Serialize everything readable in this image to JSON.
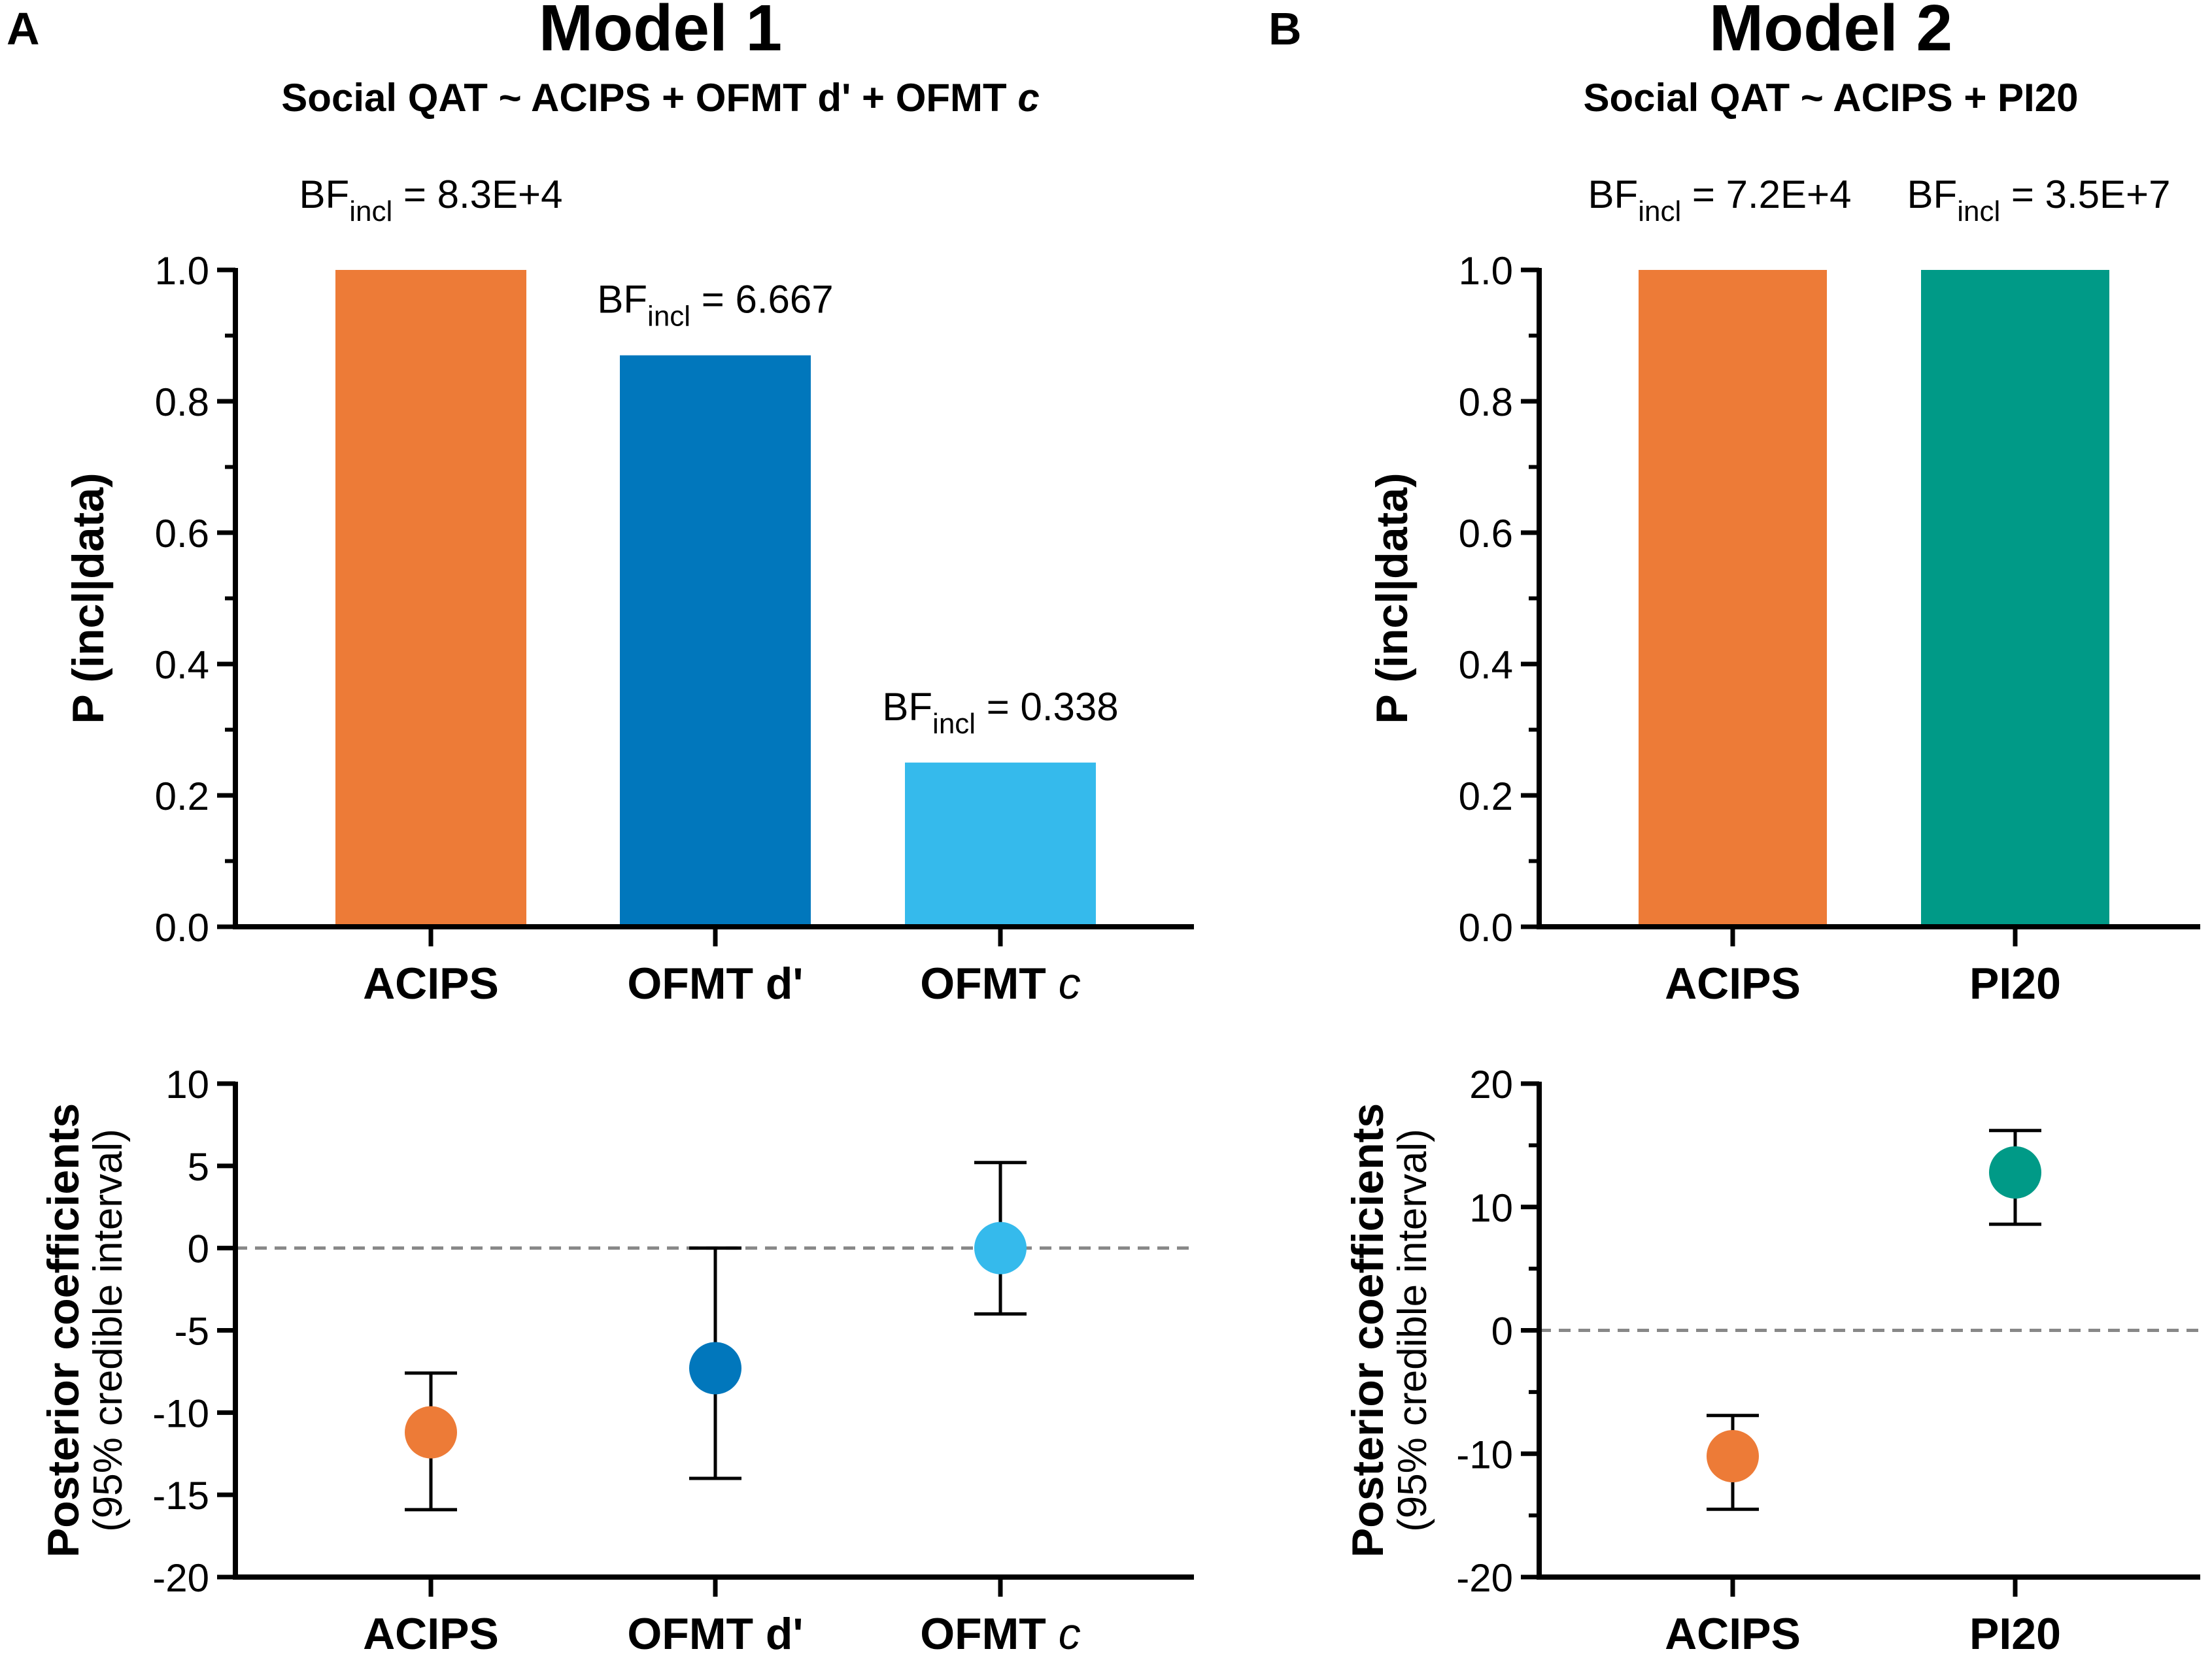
{
  "panels": [
    {
      "letter": "A",
      "title": "Model 1",
      "formula": {
        "pre": "Social QAT ~ ACIPS + OFMT d' + OFMT ",
        "italic": "c"
      },
      "xticks": [
        {
          "text": "ACIPS",
          "italic": ""
        },
        {
          "text": "OFMT d'",
          "italic": ""
        },
        {
          "text": "OFMT ",
          "italic": "c"
        }
      ]
    },
    {
      "letter": "B",
      "title": "Model 2",
      "formula": {
        "pre": "Social QAT ~ ACIPS + PI20",
        "italic": ""
      },
      "xticks": [
        {
          "text": "ACIPS",
          "italic": ""
        },
        {
          "text": "PI20",
          "italic": ""
        }
      ]
    }
  ],
  "colors": {
    "acips": "#ED7B37",
    "ofmt_d": "#0177BC",
    "ofmt_c": "#35BAEC",
    "pi20": "#009A87",
    "axis": "#000000",
    "zero_line": "#888888"
  },
  "chart_data": [
    {
      "id": "A-top",
      "type": "bar",
      "categories": [
        "ACIPS",
        "OFMT d'",
        "OFMT c"
      ],
      "values": [
        1.0,
        0.87,
        0.25
      ],
      "colors": [
        "#ED7B37",
        "#0177BC",
        "#35BAEC"
      ],
      "bf_labels": [
        "8.3E+4",
        "6.667",
        "0.338"
      ],
      "bf_prefix": "BF",
      "bf_sub": "incl",
      "ylabel": "P (incl|data)",
      "ylim": [
        0,
        1.0
      ],
      "yticks": [
        "0.0",
        "0.2",
        "0.4",
        "0.6",
        "0.8",
        "1.0"
      ]
    },
    {
      "id": "A-bottom",
      "type": "scatter",
      "categories": [
        "ACIPS",
        "OFMT d'",
        "OFMT c"
      ],
      "estimates": [
        -11.2,
        -7.3,
        0.0
      ],
      "lower": [
        -15.9,
        -14.0,
        -4.0
      ],
      "upper": [
        -7.6,
        0.0,
        5.2
      ],
      "colors": [
        "#ED7B37",
        "#0177BC",
        "#35BAEC"
      ],
      "ylabel": "Posterior coefficients",
      "ylabel2": "(95% credible interval)",
      "ylim": [
        -20,
        10
      ],
      "yticks": [
        "-20",
        "-15",
        "-10",
        "-5",
        "0",
        "5",
        "10"
      ],
      "reference_line": 0
    },
    {
      "id": "B-top",
      "type": "bar",
      "categories": [
        "ACIPS",
        "PI20"
      ],
      "values": [
        1.0,
        1.0
      ],
      "colors": [
        "#ED7B37",
        "#009A87"
      ],
      "bf_labels": [
        "7.2E+4",
        "3.5E+7"
      ],
      "bf_prefix": "BF",
      "bf_sub": "incl",
      "ylabel": "P (incl|data)",
      "ylim": [
        0,
        1.0
      ],
      "yticks": [
        "0.0",
        "0.2",
        "0.4",
        "0.6",
        "0.8",
        "1.0"
      ]
    },
    {
      "id": "B-bottom",
      "type": "scatter",
      "categories": [
        "ACIPS",
        "PI20"
      ],
      "estimates": [
        -10.2,
        12.8
      ],
      "lower": [
        -14.5,
        8.6
      ],
      "upper": [
        -6.9,
        16.2
      ],
      "colors": [
        "#ED7B37",
        "#009A87"
      ],
      "ylabel": "Posterior coefficients",
      "ylabel2": "(95% credible interval)",
      "ylim": [
        -20,
        20
      ],
      "yticks": [
        "-20",
        "-10",
        "0",
        "10",
        "20"
      ],
      "reference_line": 0
    }
  ]
}
